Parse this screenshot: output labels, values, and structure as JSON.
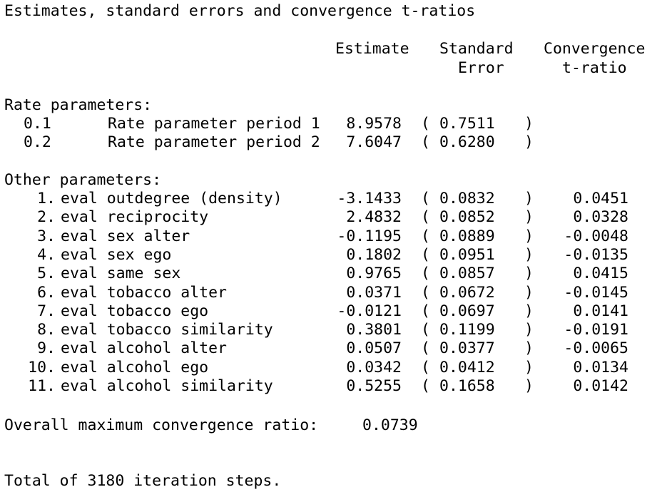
{
  "title": "Estimates, standard errors and convergence t-ratios",
  "headers": {
    "estimate": "Estimate",
    "std_error_1": "Standard",
    "std_error_2": "Error",
    "conv_1": "Convergence",
    "conv_2": "t-ratio"
  },
  "rate_section_label": "Rate parameters:",
  "rate_params": [
    {
      "id": "0.1",
      "name": "Rate parameter period 1",
      "estimate": "8.9578",
      "se": "0.7511"
    },
    {
      "id": "0.2",
      "name": "Rate parameter period 2",
      "estimate": "7.6047",
      "se": "0.6280"
    }
  ],
  "other_section_label": "Other parameters:",
  "other_params": [
    {
      "id": "1.",
      "name": "eval outdegree (density)",
      "estimate": "-3.1433",
      "se": "0.0832",
      "t": "0.0451"
    },
    {
      "id": "2.",
      "name": "eval reciprocity",
      "estimate": "2.4832",
      "se": "0.0852",
      "t": "0.0328"
    },
    {
      "id": "3.",
      "name": "eval sex alter",
      "estimate": "-0.1195",
      "se": "0.0889",
      "t": "-0.0048"
    },
    {
      "id": "4.",
      "name": "eval sex ego",
      "estimate": "0.1802",
      "se": "0.0951",
      "t": "-0.0135"
    },
    {
      "id": "5.",
      "name": "eval same sex",
      "estimate": "0.9765",
      "se": "0.0857",
      "t": "0.0415"
    },
    {
      "id": "6.",
      "name": "eval tobacco alter",
      "estimate": "0.0371",
      "se": "0.0672",
      "t": "-0.0145"
    },
    {
      "id": "7.",
      "name": "eval tobacco ego",
      "estimate": "-0.0121",
      "se": "0.0697",
      "t": "0.0141"
    },
    {
      "id": "8.",
      "name": "eval tobacco similarity",
      "estimate": "0.3801",
      "se": "0.1199",
      "t": "-0.0191"
    },
    {
      "id": "9.",
      "name": "eval alcohol alter",
      "estimate": "0.0507",
      "se": "0.0377",
      "t": "-0.0065"
    },
    {
      "id": "10.",
      "name": "eval alcohol ego",
      "estimate": "0.0342",
      "se": "0.0412",
      "t": "0.0134"
    },
    {
      "id": "11.",
      "name": "eval alcohol similarity",
      "estimate": "0.5255",
      "se": "0.1658",
      "t": "0.0142"
    }
  ],
  "open_paren": "(",
  "close_paren": ")",
  "overall_label": "Overall maximum convergence ratio:",
  "overall_value": "0.0739",
  "total_steps": "Total of 3180 iteration steps."
}
